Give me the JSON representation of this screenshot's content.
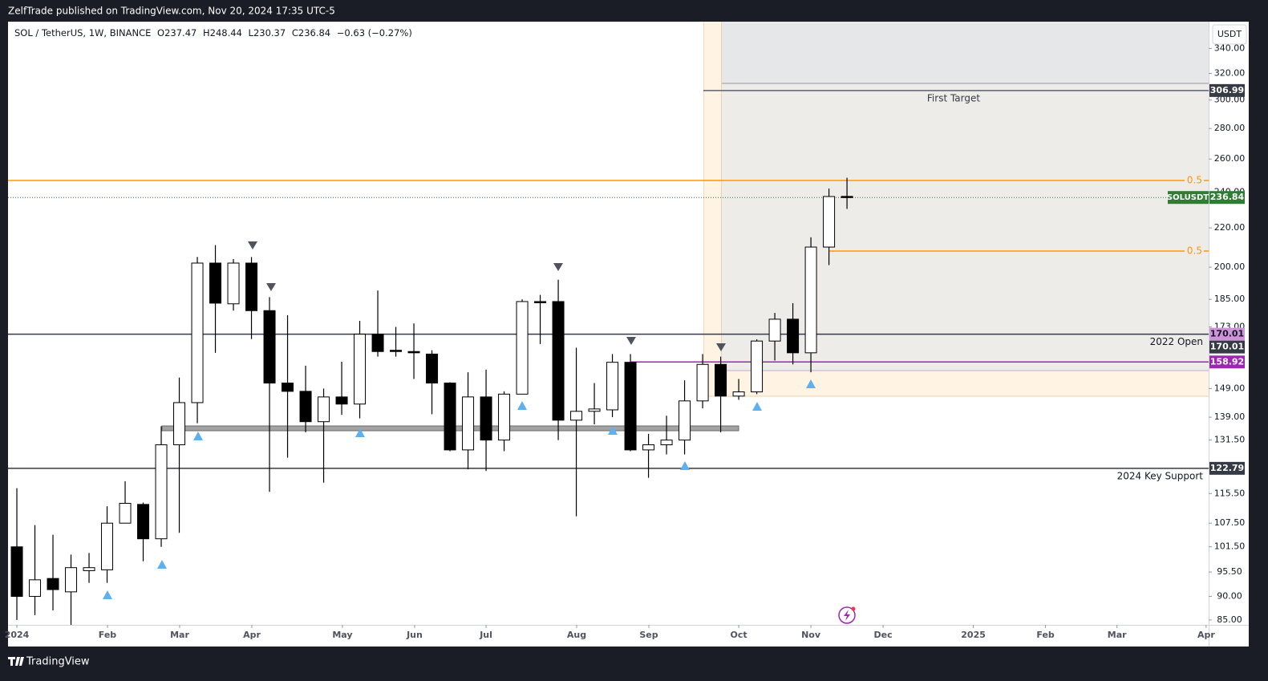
{
  "header": "ZelfTrade published on TradingView.com, Nov 20, 2024 17:35 UTC-5",
  "footer": "TradingView",
  "currency": "USDT",
  "chart_data": {
    "type": "candlestick",
    "symbol": "SOL / TetherUS, 1W, BINANCE",
    "legend": [
      "O237.47",
      "H248.44",
      "L230.37",
      "C236.84",
      "−0.63 (−0.27%)"
    ],
    "open": [
      101.5,
      90,
      94,
      91,
      95.8,
      96,
      107.5,
      112.5,
      103.5,
      130,
      144,
      202,
      183,
      202,
      180,
      151,
      148,
      137.5,
      146,
      143.5,
      170,
      163.5,
      163,
      162,
      151,
      128.4,
      146,
      131.5,
      147,
      184,
      184,
      138,
      141,
      141.5,
      158.8,
      128.4,
      130,
      131.5,
      144.6,
      158,
      146.3,
      147.8,
      167.2,
      176.3,
      162.5,
      210,
      237.47
    ],
    "high": [
      117,
      107,
      104.5,
      99.6,
      100,
      112,
      119,
      113,
      136,
      153,
      205,
      211,
      204,
      205,
      186,
      178,
      157.5,
      149,
      159,
      175.6,
      189,
      173,
      174.5,
      163.5,
      151.3,
      155,
      156,
      148,
      185,
      187,
      194,
      164.5,
      151,
      162,
      162,
      133.5,
      139.5,
      152,
      162,
      161,
      152.5,
      167.9,
      179,
      183.3,
      215,
      242,
      248.44
    ],
    "low": [
      85,
      86,
      87,
      84,
      93,
      93,
      107.5,
      98,
      101.5,
      105,
      137,
      162.5,
      180,
      168,
      116,
      126,
      134,
      118.6,
      139.8,
      138.6,
      161,
      161,
      152.5,
      140,
      128,
      122.5,
      122,
      128,
      147,
      166,
      131.5,
      109.3,
      136.6,
      139,
      128,
      120,
      127,
      127,
      142,
      134,
      145,
      147,
      159.5,
      158,
      155,
      201,
      230.37
    ],
    "close": [
      90,
      93.7,
      91.5,
      96.5,
      96.5,
      107.5,
      112.8,
      103.5,
      130,
      144,
      202,
      183.3,
      202,
      180,
      151,
      148,
      137.5,
      146,
      143.5,
      170,
      163,
      163,
      162.5,
      151,
      128.4,
      146,
      131.5,
      147,
      184,
      183.5,
      138,
      141,
      141.8,
      158.8,
      128.4,
      130,
      131.5,
      144.6,
      158,
      146.3,
      147.8,
      167.2,
      176.3,
      162.5,
      210,
      237.4,
      236.84
    ],
    "up_color": "#ffffff",
    "down_color": "#000000",
    "log_scale": true,
    "xlim": [
      -0.49,
      66.04
    ],
    "xticks": [
      {
        "value": 0,
        "label": "2024"
      },
      {
        "value": 5.02,
        "label": "Feb"
      },
      {
        "value": 9.02,
        "label": "Mar"
      },
      {
        "value": 13.02,
        "label": "Apr"
      },
      {
        "value": 18.04,
        "label": "May"
      },
      {
        "value": 22.04,
        "label": "Jun"
      },
      {
        "value": 26,
        "label": "Jul"
      },
      {
        "value": 31.02,
        "label": "Aug"
      },
      {
        "value": 35.02,
        "label": "Sep"
      },
      {
        "value": 40,
        "label": "Oct"
      },
      {
        "value": 44,
        "label": "Nov"
      },
      {
        "value": 48,
        "label": "Dec"
      },
      {
        "value": 53,
        "label": "2025"
      },
      {
        "value": 57,
        "label": "Feb"
      },
      {
        "value": 60.96,
        "label": "Mar"
      },
      {
        "value": 65.9,
        "label": "Apr"
      }
    ],
    "ylim": [
      84,
      362.8
    ],
    "yticks": [
      {
        "value": 340,
        "label": "340.00"
      },
      {
        "value": 320,
        "label": "320.00"
      },
      {
        "value": 300,
        "label": "300.00"
      },
      {
        "value": 280,
        "label": "280.00"
      },
      {
        "value": 260,
        "label": "260.00"
      },
      {
        "value": 240,
        "label": "240.00"
      },
      {
        "value": 220,
        "label": "220.00"
      },
      {
        "value": 200,
        "label": "200.00"
      },
      {
        "value": 185,
        "label": "185.00"
      },
      {
        "value": 173,
        "label": "173.00"
      },
      {
        "value": 149,
        "label": "149.00"
      },
      {
        "value": 139,
        "label": "139.00"
      },
      {
        "value": 131.5,
        "label": "131.50"
      },
      {
        "value": 115.5,
        "label": "115.50"
      },
      {
        "value": 107.5,
        "label": "107.50"
      },
      {
        "value": 101.5,
        "label": "101.50"
      },
      {
        "value": 95.5,
        "label": "95.50"
      },
      {
        "value": 90,
        "label": "90.00"
      },
      {
        "value": 85,
        "label": "85.00"
      }
    ],
    "levels": [
      {
        "value": 306.99,
        "name": "First Target",
        "color": "#5d606b",
        "tag_color": "#363a45"
      },
      {
        "value": 246.8,
        "name": "0.5",
        "color": "#ff9800"
      },
      {
        "value": 236.84,
        "name": "SOLUSDT",
        "color": "#2e7d32",
        "tag_color": "#2e7d32",
        "dotted": true
      },
      {
        "value": 208,
        "name": "0.5",
        "color": "#ff9800"
      },
      {
        "value": 170.01,
        "name": "2022 Open",
        "color": "#363a45",
        "tag_color": "#363a45"
      },
      {
        "value": 170.01,
        "color": "#ce93d8",
        "tag_color": "#ce93d8"
      },
      {
        "value": 158.92,
        "color": "#9c27b0",
        "tag_color": "#9c27b0"
      },
      {
        "value": 122.79,
        "name": "2024 Key Support",
        "color": "#363a45",
        "tag_color": "#363a45"
      }
    ]
  }
}
